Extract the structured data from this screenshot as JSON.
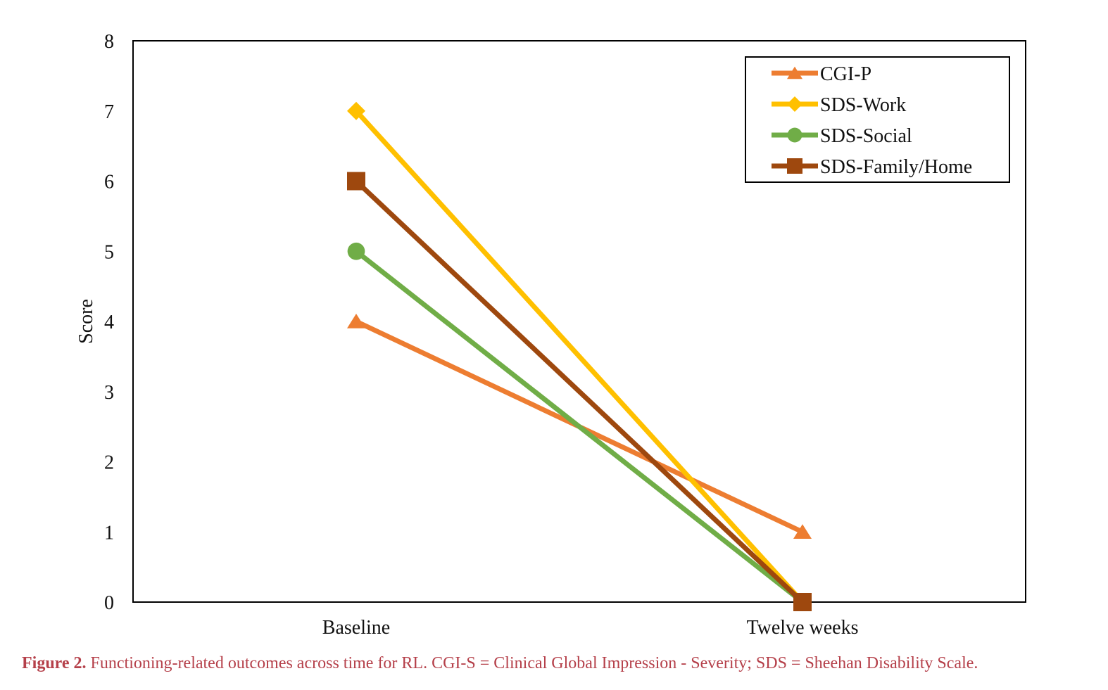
{
  "chart_data": {
    "type": "line",
    "categories": [
      "Baseline",
      "Twelve weeks"
    ],
    "ylabel": "Score",
    "ylim": [
      0,
      8
    ],
    "yticks": [
      0,
      1,
      2,
      3,
      4,
      5,
      6,
      7,
      8
    ],
    "legend_position": "top-right",
    "series": [
      {
        "name": "CGI-P",
        "values": [
          4,
          1
        ],
        "color": "#ED7D31",
        "marker": "triangle"
      },
      {
        "name": "SDS-Work",
        "values": [
          7,
          0
        ],
        "color": "#FFC000",
        "marker": "diamond"
      },
      {
        "name": "SDS-Social",
        "values": [
          5,
          0
        ],
        "color": "#70AD47",
        "marker": "circle"
      },
      {
        "name": "SDS-Family/Home",
        "values": [
          6,
          0
        ],
        "color": "#9E480E",
        "marker": "square"
      }
    ]
  },
  "caption": {
    "label": "Figure 2.",
    "text": "Functioning-related outcomes across time for RL. CGI-S = Clinical Global Impression - Severity; SDS = Sheehan Disability Scale."
  }
}
